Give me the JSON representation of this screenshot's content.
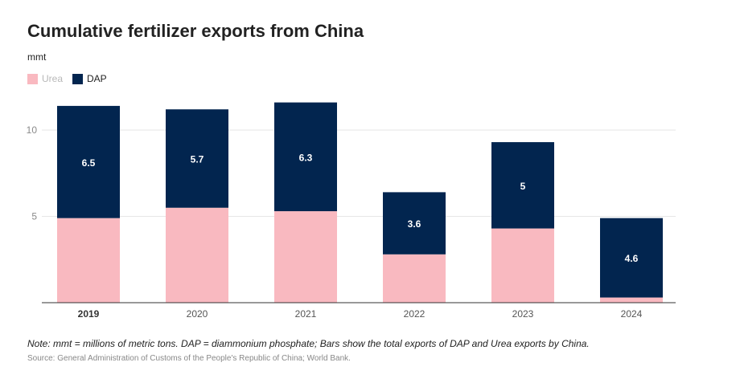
{
  "title": "Cumulative fertilizer exports from China",
  "unit": "mmt",
  "legend": {
    "urea": "Urea",
    "dap": "DAP"
  },
  "colors": {
    "urea": "#f9b9c0",
    "dap": "#02254f",
    "grid": "#e6e6e6",
    "axis": "#333333",
    "tick_text": "#8a8a8a"
  },
  "note": "Note: mmt = millions of metric tons. DAP = diammonium phosphate; Bars show the total exports of DAP and Urea exports by China.",
  "source": "Source: General Administration of Customs of the People's Republic of China; World Bank.",
  "chart_data": {
    "type": "bar",
    "stacked": true,
    "title": "Cumulative fertilizer exports from China",
    "ylabel": "mmt",
    "xlabel": "",
    "categories": [
      "2019",
      "2020",
      "2021",
      "2022",
      "2023",
      "2024"
    ],
    "series": [
      {
        "name": "Urea",
        "values": [
          4.9,
          5.5,
          5.3,
          2.8,
          4.3,
          0.3
        ]
      },
      {
        "name": "DAP",
        "values": [
          6.5,
          5.7,
          6.3,
          3.6,
          5,
          4.6
        ],
        "labels": [
          "6.5",
          "5.7",
          "6.3",
          "3.6",
          "5",
          "4.6"
        ]
      }
    ],
    "yticks": [
      "5",
      "10"
    ],
    "ytick_values": [
      5,
      10
    ],
    "ylim": [
      0,
      12
    ],
    "bold_category": "2019",
    "grid": true,
    "legend": "top-left"
  }
}
